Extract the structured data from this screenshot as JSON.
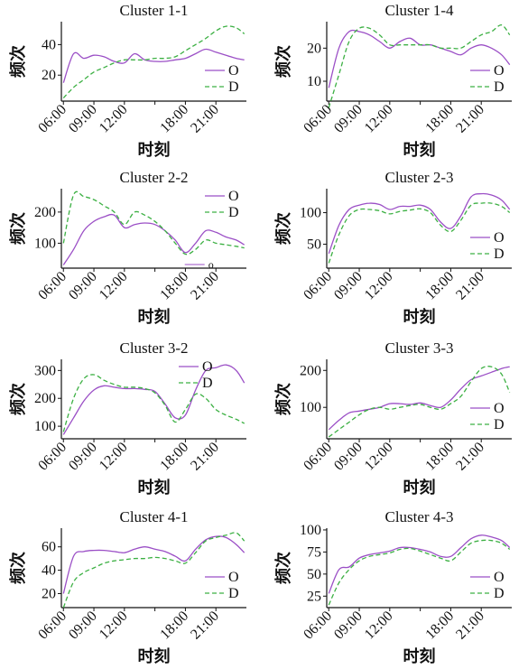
{
  "chart_data": [
    {
      "type": "line",
      "title": "Cluster 1-1",
      "xlabel": "时刻",
      "ylabel": "频次",
      "xticks": [
        "06:00",
        "09:00",
        "12:00",
        "18:00",
        "21:00"
      ],
      "xlim": [
        5.8,
        24
      ],
      "yticks": [
        20,
        40
      ],
      "ylim": [
        3,
        55
      ],
      "legend": "right",
      "series": [
        {
          "name": "O",
          "x": [
            6,
            7,
            8,
            9,
            10,
            11,
            12,
            13,
            14,
            15,
            16,
            17,
            18,
            19,
            20,
            21,
            22,
            23,
            23.8
          ],
          "y": [
            15,
            34,
            31,
            33,
            32,
            29,
            28,
            34,
            30,
            29,
            29,
            30,
            31,
            34,
            37,
            35,
            33,
            31,
            30
          ]
        },
        {
          "name": "D",
          "x": [
            6,
            7,
            8,
            9,
            10,
            11,
            12,
            13,
            14,
            15,
            16,
            17,
            18,
            19,
            20,
            21,
            22,
            23,
            23.8
          ],
          "y": [
            5,
            12,
            17,
            22,
            25,
            28,
            30,
            30,
            30,
            31,
            31,
            32,
            36,
            40,
            44,
            49,
            52,
            51,
            47
          ]
        }
      ]
    },
    {
      "type": "line",
      "title": "Cluster 1-4",
      "xlabel": "时刻",
      "ylabel": "频次",
      "xticks": [
        "06:00",
        "09:00",
        "12:00",
        "18:00",
        "21:00"
      ],
      "xlim": [
        5.8,
        24
      ],
      "yticks": [
        10,
        20
      ],
      "ylim": [
        4,
        28
      ],
      "legend": "right",
      "series": [
        {
          "name": "O",
          "x": [
            6,
            7,
            8,
            9,
            10,
            11,
            12,
            13,
            14,
            15,
            16,
            17,
            18,
            19,
            20,
            21,
            22,
            23,
            23.8
          ],
          "y": [
            8,
            20,
            25,
            25,
            24,
            22,
            20,
            22,
            23,
            21,
            21,
            20,
            19,
            18,
            20,
            21,
            20,
            18,
            15
          ]
        },
        {
          "name": "D",
          "x": [
            6,
            7,
            8,
            9,
            10,
            11,
            12,
            13,
            14,
            15,
            16,
            17,
            18,
            19,
            20,
            21,
            22,
            23,
            23.8
          ],
          "y": [
            2,
            12,
            22,
            26,
            26,
            24,
            21,
            21,
            21,
            21,
            21,
            20,
            20,
            20,
            22,
            24,
            25,
            27,
            24
          ]
        }
      ]
    },
    {
      "type": "line",
      "title": "Cluster 2-2",
      "xlabel": "时刻",
      "ylabel": "频次",
      "xticks": [
        "06:00",
        "09:00",
        "12:00",
        "18:00",
        "21:00"
      ],
      "xlim": [
        5.8,
        24
      ],
      "yticks": [
        100,
        200
      ],
      "ylim": [
        20,
        275
      ],
      "legend": "right",
      "series": [
        {
          "name": "O",
          "x": [
            6,
            7,
            8,
            9,
            10,
            11,
            12,
            13,
            14,
            15,
            16,
            17,
            18,
            19,
            20,
            21,
            22,
            23,
            23.8
          ],
          "y": [
            30,
            80,
            140,
            170,
            185,
            190,
            150,
            160,
            165,
            160,
            140,
            110,
            70,
            100,
            140,
            135,
            120,
            110,
            95
          ]
        },
        {
          "name": "D",
          "x": [
            6,
            7,
            8,
            9,
            10,
            11,
            12,
            13,
            14,
            15,
            16,
            17,
            18,
            19,
            20,
            21,
            22,
            23,
            23.8
          ],
          "y": [
            100,
            255,
            250,
            240,
            220,
            200,
            160,
            200,
            190,
            170,
            140,
            100,
            65,
            80,
            110,
            100,
            95,
            90,
            85
          ]
        }
      ]
    },
    {
      "type": "line",
      "title": "Cluster 2-3",
      "xlabel": "时刻",
      "ylabel": "频次",
      "xticks": [
        "06:00",
        "09:00",
        "12:00",
        "18:00",
        "21:00"
      ],
      "xlim": [
        5.8,
        24
      ],
      "yticks": [
        50,
        100
      ],
      "ylim": [
        12,
        138
      ],
      "legend": "right",
      "series": [
        {
          "name": "O",
          "x": [
            6,
            7,
            8,
            9,
            10,
            11,
            12,
            13,
            14,
            15,
            16,
            17,
            18,
            19,
            20,
            21,
            22,
            23,
            23.8
          ],
          "y": [
            35,
            80,
            105,
            112,
            115,
            113,
            105,
            110,
            110,
            112,
            105,
            85,
            75,
            95,
            125,
            130,
            128,
            120,
            105
          ]
        },
        {
          "name": "D",
          "x": [
            6,
            7,
            8,
            9,
            10,
            11,
            12,
            13,
            14,
            15,
            16,
            17,
            18,
            19,
            20,
            21,
            22,
            23,
            23.8
          ],
          "y": [
            20,
            65,
            95,
            105,
            105,
            103,
            98,
            102,
            104,
            106,
            100,
            80,
            70,
            88,
            112,
            115,
            115,
            110,
            100
          ]
        }
      ]
    },
    {
      "type": "line",
      "title": "Cluster 3-2",
      "xlabel": "时刻",
      "ylabel": "频次",
      "xticks": [
        "06:00",
        "09:00",
        "12:00",
        "18:00",
        "21:00"
      ],
      "xlim": [
        5.8,
        24
      ],
      "yticks": [
        100,
        200,
        300
      ],
      "ylim": [
        55,
        340
      ],
      "legend": "right",
      "series": [
        {
          "name": "O",
          "x": [
            6,
            7,
            8,
            9,
            10,
            11,
            12,
            13,
            14,
            15,
            16,
            17,
            18,
            19,
            20,
            21,
            22,
            23,
            23.8
          ],
          "y": [
            70,
            130,
            190,
            230,
            245,
            240,
            235,
            235,
            232,
            225,
            180,
            130,
            140,
            230,
            300,
            310,
            320,
            300,
            255
          ]
        },
        {
          "name": "D",
          "x": [
            6,
            7,
            8,
            9,
            10,
            11,
            12,
            13,
            14,
            15,
            16,
            17,
            18,
            19,
            20,
            21,
            22,
            23,
            23.8
          ],
          "y": [
            80,
            200,
            270,
            285,
            265,
            250,
            240,
            240,
            235,
            220,
            175,
            115,
            160,
            215,
            200,
            160,
            140,
            125,
            110
          ]
        }
      ]
    },
    {
      "type": "line",
      "title": "Cluster 3-3",
      "xlabel": "时刻",
      "ylabel": "频次",
      "xticks": [
        "06:00",
        "09:00",
        "12:00",
        "18:00",
        "21:00"
      ],
      "xlim": [
        5.8,
        24
      ],
      "yticks": [
        100,
        200
      ],
      "ylim": [
        15,
        230
      ],
      "legend": "right",
      "series": [
        {
          "name": "O",
          "x": [
            6,
            7,
            8,
            9,
            10,
            11,
            12,
            13,
            14,
            15,
            16,
            17,
            18,
            19,
            20,
            21,
            22,
            23,
            23.8
          ],
          "y": [
            40,
            65,
            85,
            90,
            95,
            100,
            110,
            110,
            108,
            112,
            105,
            100,
            120,
            150,
            175,
            185,
            195,
            205,
            210
          ]
        },
        {
          "name": "D",
          "x": [
            6,
            7,
            8,
            9,
            10,
            11,
            12,
            13,
            14,
            15,
            16,
            17,
            18,
            19,
            20,
            21,
            22,
            23,
            23.8
          ],
          "y": [
            20,
            40,
            60,
            80,
            95,
            100,
            95,
            100,
            105,
            108,
            100,
            95,
            110,
            130,
            170,
            205,
            210,
            190,
            140
          ]
        }
      ]
    },
    {
      "type": "line",
      "title": "Cluster 4-1",
      "xlabel": "时刻",
      "ylabel": "频次",
      "xticks": [
        "06:00",
        "09:00",
        "12:00",
        "18:00",
        "21:00"
      ],
      "xlim": [
        5.8,
        24
      ],
      "yticks": [
        20,
        40,
        60
      ],
      "ylim": [
        8,
        76
      ],
      "legend": "right",
      "series": [
        {
          "name": "O",
          "x": [
            6,
            7,
            8,
            9,
            10,
            11,
            12,
            13,
            14,
            15,
            16,
            17,
            18,
            19,
            20,
            21,
            22,
            23,
            23.8
          ],
          "y": [
            20,
            52,
            56,
            57,
            57,
            56,
            55,
            58,
            60,
            58,
            56,
            52,
            48,
            58,
            66,
            69,
            68,
            62,
            55
          ]
        },
        {
          "name": "D",
          "x": [
            6,
            7,
            8,
            9,
            10,
            11,
            12,
            13,
            14,
            15,
            16,
            17,
            18,
            19,
            20,
            21,
            22,
            23,
            23.8
          ],
          "y": [
            8,
            30,
            38,
            42,
            46,
            48,
            49,
            50,
            50,
            51,
            50,
            48,
            46,
            55,
            65,
            68,
            70,
            72,
            65
          ]
        }
      ]
    },
    {
      "type": "line",
      "title": "Cluster 4-3",
      "xlabel": "时刻",
      "ylabel": "频次",
      "xticks": [
        "06:00",
        "09:00",
        "12:00",
        "18:00",
        "21:00"
      ],
      "xlim": [
        5.8,
        24
      ],
      "yticks": [
        25,
        50,
        75,
        100
      ],
      "ylim": [
        12,
        102
      ],
      "legend": "right",
      "series": [
        {
          "name": "O",
          "x": [
            6,
            7,
            8,
            9,
            10,
            11,
            12,
            13,
            14,
            15,
            16,
            17,
            18,
            19,
            20,
            21,
            22,
            23,
            23.8
          ],
          "y": [
            28,
            55,
            58,
            68,
            72,
            74,
            76,
            80,
            80,
            78,
            75,
            70,
            70,
            80,
            90,
            94,
            92,
            88,
            80
          ]
        },
        {
          "name": "D",
          "x": [
            6,
            7,
            8,
            9,
            10,
            11,
            12,
            13,
            14,
            15,
            16,
            17,
            18,
            19,
            20,
            21,
            22,
            23,
            23.8
          ],
          "y": [
            15,
            40,
            55,
            65,
            70,
            72,
            74,
            78,
            79,
            76,
            72,
            68,
            65,
            75,
            85,
            88,
            88,
            85,
            78
          ]
        }
      ]
    }
  ],
  "style": {
    "o_color": "#9b4fc6",
    "d_color": "#3cb043",
    "axis_color": "#111111"
  },
  "stray_annotation": "o"
}
